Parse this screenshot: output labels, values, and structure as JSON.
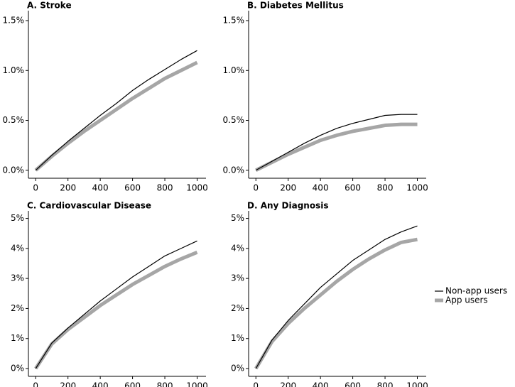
{
  "chart_data": [
    {
      "type": "line",
      "title": "A. Stroke",
      "x": [
        0,
        100,
        200,
        300,
        400,
        500,
        600,
        700,
        800,
        900,
        1000
      ],
      "series": [
        {
          "name": "Non-app users",
          "color": "#000000",
          "values": [
            0,
            0.15,
            0.29,
            0.42,
            0.55,
            0.67,
            0.8,
            0.91,
            1.01,
            1.11,
            1.2
          ]
        },
        {
          "name": "App users",
          "color": "#a6a6a6",
          "values": [
            0,
            0.14,
            0.27,
            0.39,
            0.5,
            0.61,
            0.72,
            0.82,
            0.92,
            1.0,
            1.08
          ]
        }
      ],
      "xlim": [
        -45,
        1055
      ],
      "ylim": [
        -0.08,
        1.6
      ],
      "xticks": [
        0,
        200,
        400,
        600,
        800,
        1000
      ],
      "yticks": [
        {
          "value": 0,
          "label": "0.0%"
        },
        {
          "value": 0.5,
          "label": "0.5%"
        },
        {
          "value": 1,
          "label": "1.0%"
        },
        {
          "value": 1.5,
          "label": "1.5%"
        }
      ]
    },
    {
      "type": "line",
      "title": "B. Diabetes Mellitus",
      "x": [
        0,
        100,
        200,
        300,
        400,
        500,
        600,
        700,
        800,
        900,
        1000
      ],
      "series": [
        {
          "name": "Non-app users",
          "color": "#000000",
          "values": [
            0,
            0.09,
            0.18,
            0.27,
            0.35,
            0.42,
            0.47,
            0.51,
            0.55,
            0.56,
            0.56
          ]
        },
        {
          "name": "App users",
          "color": "#a6a6a6",
          "values": [
            0,
            0.08,
            0.16,
            0.23,
            0.3,
            0.35,
            0.39,
            0.42,
            0.45,
            0.46,
            0.46
          ]
        }
      ],
      "xlim": [
        -45,
        1055
      ],
      "ylim": [
        -0.08,
        1.6
      ],
      "xticks": [
        0,
        200,
        400,
        600,
        800,
        1000
      ],
      "yticks": [
        {
          "value": 0,
          "label": "0.0%"
        },
        {
          "value": 0.5,
          "label": "0.5%"
        },
        {
          "value": 1,
          "label": "1.0%"
        },
        {
          "value": 1.5,
          "label": "1.5%"
        }
      ]
    },
    {
      "type": "line",
      "title": "C. Cardiovascular Disease",
      "x": [
        0,
        100,
        200,
        300,
        400,
        500,
        600,
        700,
        800,
        900,
        1000
      ],
      "series": [
        {
          "name": "Non-app users",
          "color": "#000000",
          "values": [
            0,
            0.85,
            1.35,
            1.8,
            2.25,
            2.65,
            3.05,
            3.4,
            3.75,
            4.0,
            4.25
          ]
        },
        {
          "name": "App users",
          "color": "#a6a6a6",
          "values": [
            0,
            0.82,
            1.3,
            1.7,
            2.1,
            2.45,
            2.8,
            3.1,
            3.4,
            3.65,
            3.87
          ]
        }
      ],
      "xlim": [
        -45,
        1055
      ],
      "ylim": [
        -0.26,
        5.25
      ],
      "xticks": [
        0,
        200,
        400,
        600,
        800,
        1000
      ],
      "yticks": [
        {
          "value": 0,
          "label": "0%"
        },
        {
          "value": 1,
          "label": "1%"
        },
        {
          "value": 2,
          "label": "2%"
        },
        {
          "value": 3,
          "label": "3%"
        },
        {
          "value": 4,
          "label": "4%"
        },
        {
          "value": 5,
          "label": "5%"
        }
      ]
    },
    {
      "type": "line",
      "title": "D. Any Diagnosis",
      "x": [
        0,
        100,
        200,
        300,
        400,
        500,
        600,
        700,
        800,
        900,
        1000
      ],
      "series": [
        {
          "name": "Non-app users",
          "color": "#000000",
          "values": [
            0,
            0.95,
            1.6,
            2.15,
            2.7,
            3.15,
            3.6,
            3.95,
            4.3,
            4.55,
            4.75
          ]
        },
        {
          "name": "App users",
          "color": "#a6a6a6",
          "values": [
            0,
            0.9,
            1.5,
            2.0,
            2.45,
            2.9,
            3.3,
            3.65,
            3.95,
            4.2,
            4.3
          ]
        }
      ],
      "xlim": [
        -45,
        1055
      ],
      "ylim": [
        -0.26,
        5.25
      ],
      "xticks": [
        0,
        200,
        400,
        600,
        800,
        1000
      ],
      "yticks": [
        {
          "value": 0,
          "label": "0%"
        },
        {
          "value": 1,
          "label": "1%"
        },
        {
          "value": 2,
          "label": "2%"
        },
        {
          "value": 3,
          "label": "3%"
        },
        {
          "value": 4,
          "label": "4%"
        },
        {
          "value": 5,
          "label": "5%"
        }
      ]
    }
  ]
}
